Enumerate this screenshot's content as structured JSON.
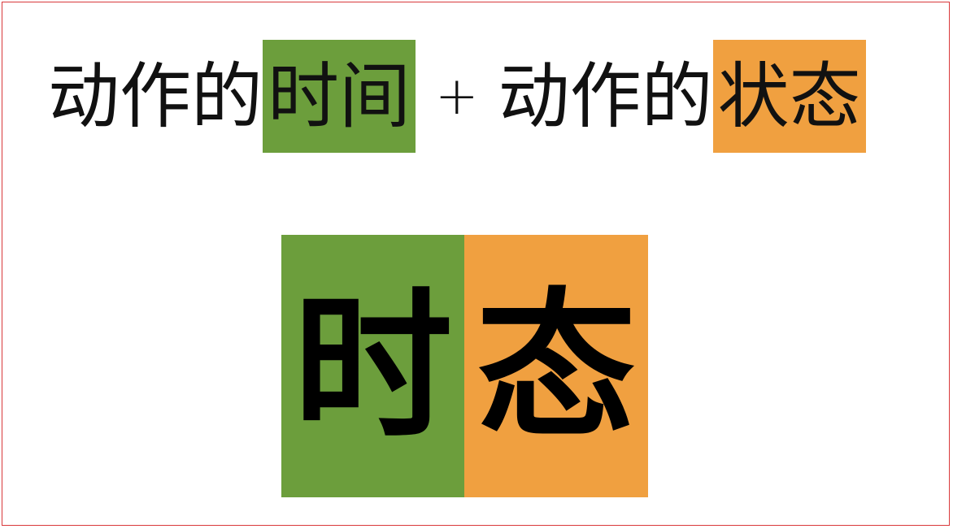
{
  "colors": {
    "green": "#6c9e3c",
    "orange": "#f0a040",
    "border": "#d9383b"
  },
  "formula": {
    "part1_prefix": "动作的",
    "part1_highlight": "时间",
    "plus": "+",
    "part2_prefix": "动作的",
    "part2_highlight": "状态"
  },
  "result": {
    "char1": "时",
    "char2": "态"
  }
}
